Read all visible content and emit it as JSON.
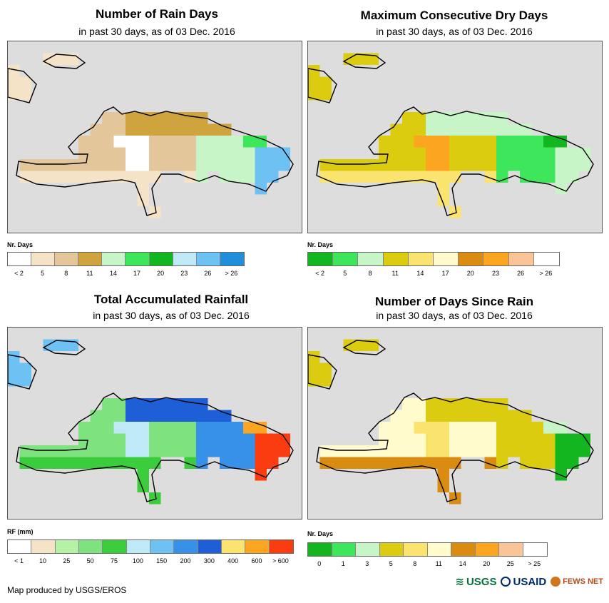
{
  "panels": [
    {
      "id": "rain-days",
      "title": "Number of Rain Days",
      "subtitle": "in past 30 days, as of 03 Dec. 2016",
      "legend_label": "Nr. Days",
      "legend_colors": [
        "#ffffff",
        "#f5e3c8",
        "#e3c79a",
        "#cfa43e",
        "#c8f5c8",
        "#3de65a",
        "#13b61e",
        "#bfe9f7",
        "#6ec2f3",
        "#1e8fd8"
      ],
      "legend_ticks": [
        "< 2",
        "5",
        "8",
        "11",
        "14",
        "17",
        "20",
        "23",
        "26",
        "> 26"
      ],
      "regions": {
        "west": "#e3c79a",
        "north": "#cfa43e",
        "south": "#f5e3c8",
        "east": "#c8f5c8",
        "ne": "#3de65a",
        "core": "#ffffff",
        "far": "#6ec2f3",
        "isle": "#f5e3c8"
      }
    },
    {
      "id": "max-dry-days",
      "title": "Maximum Consecutive Dry Days",
      "subtitle": "in past 30 days, as of 03 Dec. 2016",
      "legend_label": "Nr. Days",
      "legend_colors": [
        "#13b61e",
        "#3de65a",
        "#c8f5c8",
        "#dccc10",
        "#fbe370",
        "#fffbcc",
        "#d98c10",
        "#fba520",
        "#fbc496",
        "#ffffff"
      ],
      "legend_ticks": [
        "< 2",
        "5",
        "8",
        "11",
        "14",
        "17",
        "20",
        "23",
        "26",
        "> 26"
      ],
      "regions": {
        "west": "#dccc10",
        "north": "#c8f5c8",
        "south": "#fbe370",
        "east": "#3de65a",
        "ne": "#13b61e",
        "core": "#fba520",
        "far": "#c8f5c8",
        "isle": "#dccc10"
      }
    },
    {
      "id": "total-rainfall",
      "title": "Total Accumulated Rainfall",
      "subtitle": "in past 30 days, as of 03 Dec. 2016",
      "legend_label": "RF (mm)",
      "legend_colors": [
        "#ffffff",
        "#f5e3c8",
        "#b6f2a6",
        "#7ee27e",
        "#3ccd3c",
        "#bfe9f7",
        "#6ec2f3",
        "#3891e8",
        "#1e5fd8",
        "#fbe370",
        "#fba520",
        "#fb3b10"
      ],
      "legend_ticks": [
        "< 1",
        "10",
        "25",
        "50",
        "75",
        "100",
        "150",
        "200",
        "300",
        "400",
        "600",
        "> 600"
      ],
      "regions": {
        "west": "#7ee27e",
        "north": "#1e5fd8",
        "south": "#3ccd3c",
        "east": "#3891e8",
        "ne": "#fba520",
        "core": "#bfe9f7",
        "far": "#fb3b10",
        "isle": "#6ec2f3"
      }
    },
    {
      "id": "days-since-rain",
      "title": "Number of Days Since Rain",
      "subtitle": "in past 30 days, as of 03 Dec. 2016",
      "legend_label": "Nr. Days",
      "legend_colors": [
        "#13b61e",
        "#3de65a",
        "#c8f5c8",
        "#dccc10",
        "#fbe370",
        "#fffbcc",
        "#d98c10",
        "#fba520",
        "#fbc496",
        "#ffffff"
      ],
      "legend_ticks": [
        "0",
        "1",
        "3",
        "5",
        "8",
        "11",
        "14",
        "20",
        "25",
        "> 25"
      ],
      "regions": {
        "west": "#fffbcc",
        "north": "#dccc10",
        "south": "#d98c10",
        "east": "#dccc10",
        "ne": "#c8f5c8",
        "core": "#fbe370",
        "far": "#13b61e",
        "isle": "#dccc10"
      }
    }
  ],
  "credit": "Map produced by USGS/EROS",
  "logos": {
    "usgs": "USGS",
    "usaid": "USAID",
    "fews": "FEWS NET"
  }
}
